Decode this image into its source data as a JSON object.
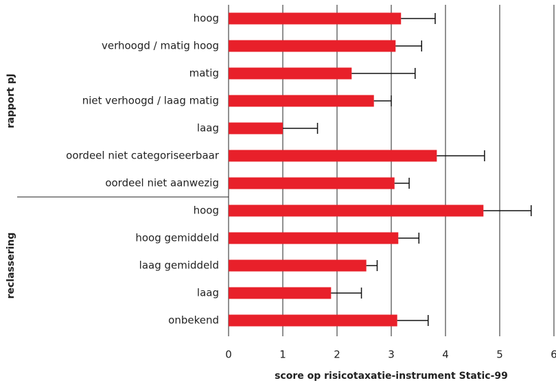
{
  "chart_data": {
    "type": "bar",
    "orientation": "horizontal",
    "color": "#e8202a",
    "xlabel": "score op risicotaxatie-instrument Static-99",
    "xlim": [
      0,
      6
    ],
    "xticks": [
      0,
      1,
      2,
      3,
      4,
      5,
      6
    ],
    "grid": true,
    "groups": [
      {
        "name": "rapport pJ",
        "categories": [
          "hoog",
          "verhoogd / matig hoog",
          "matig",
          "niet verhoogd / laag matig",
          "laag",
          "oordeel niet categoriseerbaar",
          "oordeel niet aanwezig"
        ],
        "values": [
          3.18,
          3.08,
          2.27,
          2.68,
          1.0,
          3.84,
          3.06
        ],
        "errors": [
          0.63,
          0.48,
          1.17,
          0.32,
          0.64,
          0.88,
          0.27
        ]
      },
      {
        "name": "reclassering",
        "categories": [
          "hoog",
          "hoog gemiddeld",
          "laag gemiddeld",
          "laag",
          "onbekend"
        ],
        "values": [
          4.7,
          3.13,
          2.54,
          1.89,
          3.11
        ],
        "errors": [
          0.88,
          0.38,
          0.2,
          0.56,
          0.57
        ]
      }
    ]
  }
}
